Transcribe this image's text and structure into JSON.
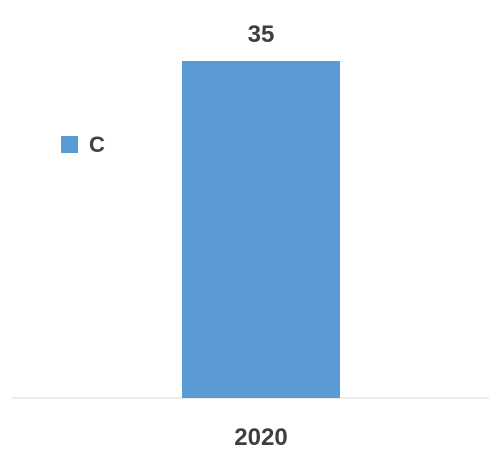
{
  "chart_data": {
    "type": "bar",
    "categories": [
      "2020"
    ],
    "series": [
      {
        "name": "C",
        "values": [
          35
        ],
        "color": "#5b9bd5"
      }
    ],
    "title": "",
    "xlabel": "",
    "ylabel": "",
    "ylim": [
      0,
      35
    ],
    "legend_position": "left",
    "grid": false,
    "axis_color": "#d9d9d9",
    "text_color": "#3f3f3f"
  }
}
